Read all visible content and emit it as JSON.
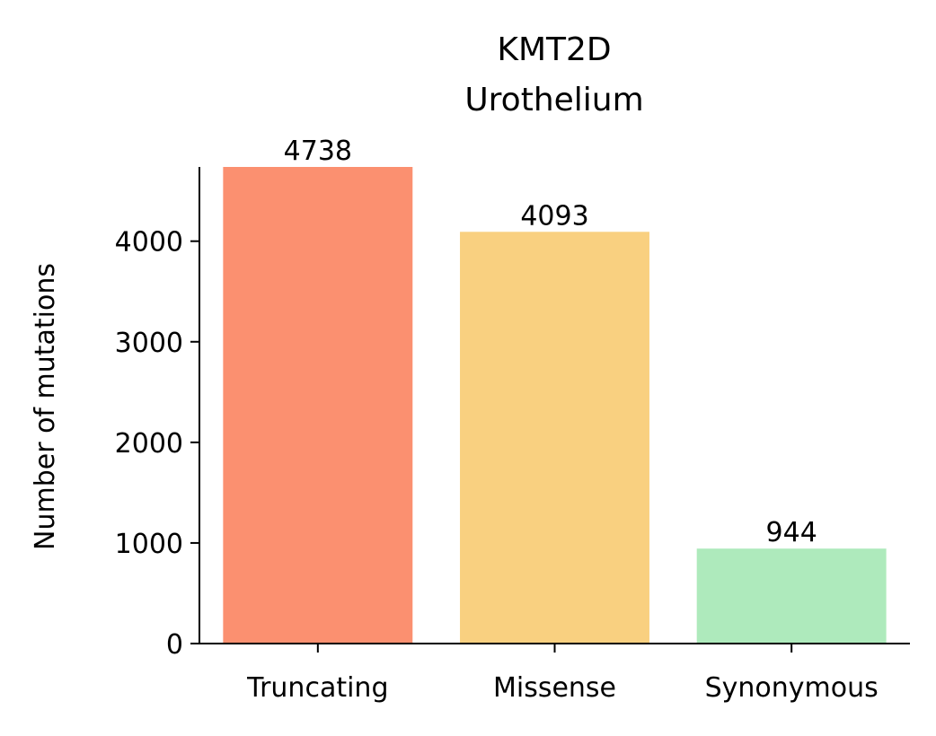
{
  "chart_data": {
    "type": "bar",
    "title": [
      "KMT2D",
      "Urothelium"
    ],
    "xlabel": "",
    "ylabel": "Number of mutations",
    "categories": [
      "Truncating",
      "Missense",
      "Synonymous"
    ],
    "values": [
      4738,
      4093,
      944
    ],
    "data_labels": [
      "4738",
      "4093",
      "944"
    ],
    "colors": [
      "#fb9070",
      "#f9d080",
      "#aeeabc"
    ],
    "yticks": [
      0,
      1000,
      2000,
      3000,
      4000
    ],
    "ytick_labels": [
      "0",
      "1000",
      "2000",
      "3000",
      "4000"
    ],
    "ylim": [
      0,
      4738
    ],
    "grid": false,
    "legend": "none"
  }
}
